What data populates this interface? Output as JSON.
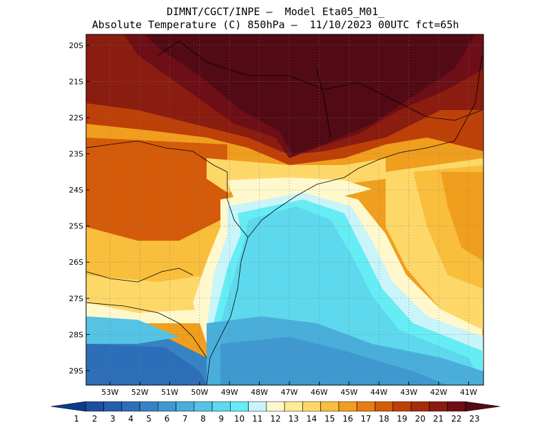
{
  "header": {
    "line1": "DIMNT/CGCT/INPE —  Model Eta05_M01_",
    "line2": "Absolute Temperature (C) 850hPa —  11/10/2023 00UTC fct=65h"
  },
  "map": {
    "lat_labels": [
      "20S",
      "21S",
      "22S",
      "23S",
      "24S",
      "25S",
      "26S",
      "27S",
      "28S",
      "29S"
    ],
    "lon_labels": [
      "53W",
      "52W",
      "51W",
      "50W",
      "49W",
      "48W",
      "47W",
      "46W",
      "45W",
      "44W",
      "43W",
      "42W",
      "41W"
    ],
    "lat_range": [
      -29.4,
      -19.7
    ],
    "lon_range": [
      -53.8,
      -40.5
    ]
  },
  "colorbar": {
    "labels": [
      "1",
      "2",
      "3",
      "4",
      "5",
      "6",
      "7",
      "8",
      "9",
      "10",
      "11",
      "12",
      "13",
      "14",
      "15",
      "16",
      "17",
      "18",
      "19",
      "20",
      "21",
      "22",
      "23"
    ],
    "colors": [
      "#0b3c8c",
      "#1d4f9e",
      "#255eac",
      "#2c6fb8",
      "#3682c3",
      "#3f98cf",
      "#4aaedb",
      "#55c3e4",
      "#5ed8ec",
      "#66ecf5",
      "#c8f4fa",
      "#fff8cc",
      "#ffeb94",
      "#fdd869",
      "#f8be3c",
      "#f09e1e",
      "#e67c12",
      "#d45b0a",
      "#bd4008",
      "#a42c0a",
      "#8a1c10",
      "#6e0e16",
      "#520a14"
    ]
  }
}
